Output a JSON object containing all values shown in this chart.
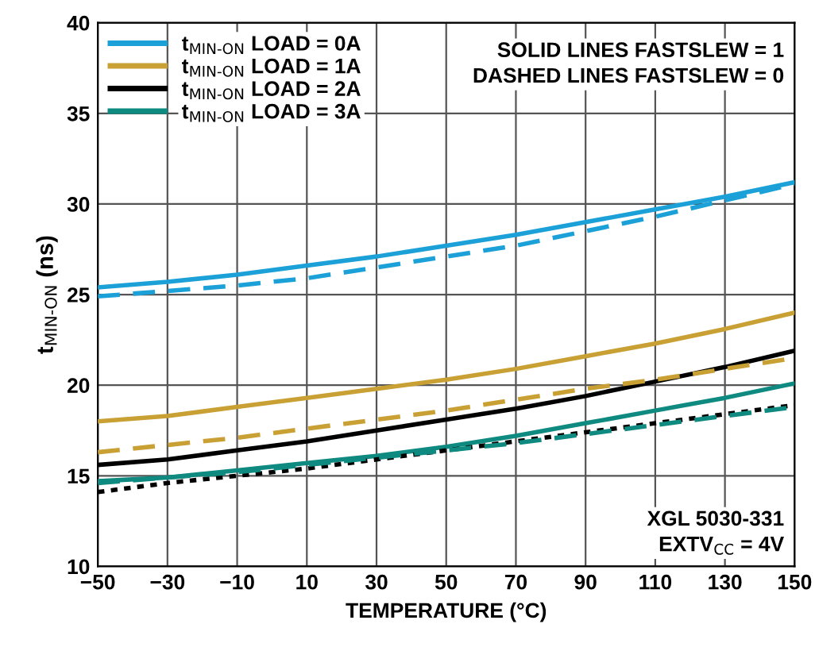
{
  "chart_data": {
    "type": "line",
    "xlabel": "TEMPERATURE (°C)",
    "ylabel": "t$_{MIN-ON}$ (ns)",
    "x": [
      -50,
      -30,
      -10,
      10,
      30,
      50,
      70,
      90,
      110,
      130,
      150
    ],
    "series": [
      {
        "name": "t$_{MIN-ON}$ LOAD = 0A",
        "color": "#1ba1d8",
        "line_style": "solid",
        "values": [
          25.4,
          25.7,
          26.1,
          26.6,
          27.1,
          27.7,
          28.3,
          29.0,
          29.7,
          30.4,
          31.2
        ]
      },
      {
        "name": "t$_{MIN-ON}$ LOAD = 1A",
        "color": "#c9a034",
        "line_style": "solid",
        "values": [
          18.0,
          18.3,
          18.8,
          19.3,
          19.8,
          20.3,
          20.9,
          21.6,
          22.3,
          23.1,
          24.0
        ]
      },
      {
        "name": "t$_{MIN-ON}$ LOAD = 2A",
        "color": "#000000",
        "line_style": "solid",
        "values": [
          15.6,
          15.9,
          16.4,
          16.9,
          17.5,
          18.1,
          18.7,
          19.4,
          20.2,
          21.0,
          21.9
        ]
      },
      {
        "name": "t$_{MIN-ON}$ LOAD = 3A",
        "color": "#0f8a80",
        "line_style": "solid",
        "values": [
          14.7,
          14.9,
          15.3,
          15.7,
          16.1,
          16.6,
          17.2,
          17.9,
          18.6,
          19.3,
          20.1
        ]
      },
      {
        "color": "#1ba1d8",
        "line_style": "dashed",
        "values": [
          24.9,
          25.2,
          25.5,
          25.9,
          26.5,
          27.1,
          27.7,
          28.5,
          29.3,
          30.2,
          31.1
        ]
      },
      {
        "color": "#c9a034",
        "line_style": "dashed",
        "values": [
          16.3,
          16.7,
          17.1,
          17.6,
          18.1,
          18.6,
          19.2,
          19.8,
          20.3,
          20.9,
          21.5
        ]
      },
      {
        "color": "#000000",
        "line_style": "dotted",
        "values": [
          14.1,
          14.6,
          15.0,
          15.4,
          15.9,
          16.4,
          16.9,
          17.4,
          17.9,
          18.4,
          18.9
        ]
      },
      {
        "color": "#0f8a80",
        "line_style": "dashed",
        "values": [
          14.6,
          14.9,
          15.2,
          15.6,
          16.0,
          16.4,
          16.8,
          17.3,
          17.8,
          18.3,
          18.8
        ]
      }
    ],
    "xlim": [
      -50,
      150
    ],
    "xticks": [
      -50,
      -30,
      -10,
      10,
      30,
      50,
      70,
      90,
      110,
      130,
      150
    ],
    "ylim": [
      10,
      40
    ],
    "yticks": [
      10,
      15,
      20,
      25,
      30,
      35,
      40
    ],
    "grid": true,
    "legend": "top left",
    "annotations": [
      "SOLID LINES FASTSLEW = 1\nDASHED LINES FASTSLEW = 0",
      "XGL 5030-331\nEXTV$_{CC}$ = 4V"
    ]
  }
}
